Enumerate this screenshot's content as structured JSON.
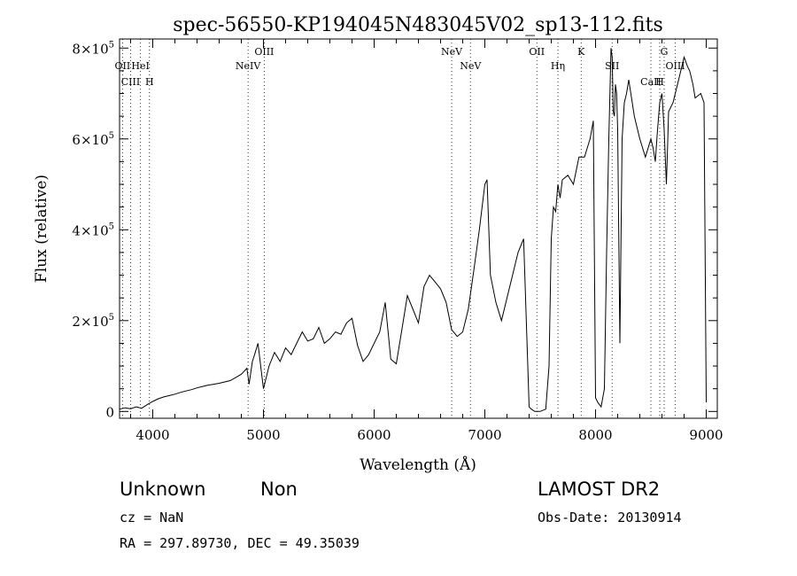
{
  "chart_data": {
    "type": "line",
    "title": "spec-56550-KP194045N483045V02_sp13-112.fits",
    "xlabel": "Wavelength (Å)",
    "ylabel": "Flux (relative)",
    "xlim": [
      3700,
      9100
    ],
    "ylim": [
      -15000,
      820000
    ],
    "x_ticks": [
      4000,
      5000,
      6000,
      7000,
      8000,
      9000
    ],
    "x_tick_labels": [
      "4000",
      "5000",
      "6000",
      "7000",
      "8000",
      "9000"
    ],
    "y_ticks": [
      0,
      200000,
      400000,
      600000,
      800000
    ],
    "y_tick_labels": [
      {
        "base": "0",
        "exp": ""
      },
      {
        "base": "2×10",
        "exp": "5"
      },
      {
        "base": "4×10",
        "exp": "5"
      },
      {
        "base": "6×10",
        "exp": "5"
      },
      {
        "base": "8×10",
        "exp": "5"
      }
    ],
    "grid": false,
    "lines": [
      {
        "label": "OII",
        "x": 3727,
        "row": 1
      },
      {
        "label": "CIII",
        "x": 3800,
        "row": 2
      },
      {
        "label": "HeI",
        "x": 3889,
        "row": 1
      },
      {
        "label": "H",
        "x": 3970,
        "row": 2
      },
      {
        "label": "NeIV",
        "x": 4861,
        "row": 1
      },
      {
        "label": "OIII",
        "x": 5007,
        "row": 0
      },
      {
        "label": "NeV",
        "x": 6700,
        "row": 0
      },
      {
        "label": "NeV",
        "x": 6870,
        "row": 1
      },
      {
        "label": "OII",
        "x": 7470,
        "row": 0
      },
      {
        "label": "Hη",
        "x": 7660,
        "row": 1
      },
      {
        "label": "K",
        "x": 7870,
        "row": 0
      },
      {
        "label": "SII",
        "x": 8150,
        "row": 1
      },
      {
        "label": "CaII",
        "x": 8500,
        "row": 2
      },
      {
        "label": "H",
        "x": 8580,
        "row": 2
      },
      {
        "label": "G",
        "x": 8620,
        "row": 0
      },
      {
        "label": "OIII",
        "x": 8720,
        "row": 1
      }
    ],
    "series": [
      {
        "x": [
          3700,
          3750,
          3800,
          3850,
          3900,
          3950,
          4000,
          4050,
          4100,
          4150,
          4200,
          4250,
          4300,
          4350,
          4400,
          4450,
          4500,
          4550,
          4600,
          4650,
          4700,
          4750,
          4800,
          4850,
          4870,
          4900,
          4920,
          4950,
          4980,
          5000,
          5050,
          5100,
          5150,
          5200,
          5250,
          5300,
          5350,
          5400,
          5450,
          5500,
          5550,
          5600,
          5650,
          5700,
          5750,
          5800,
          5850,
          5900,
          5950,
          6000,
          6050,
          6100,
          6150,
          6200,
          6250,
          6300,
          6350,
          6400,
          6450,
          6500,
          6550,
          6600,
          6650,
          6700,
          6750,
          6800,
          6850,
          6900,
          6950,
          7000,
          7020,
          7050,
          7100,
          7150,
          7200,
          7250,
          7300,
          7350,
          7400,
          7420,
          7450,
          7500,
          7550,
          7580,
          7600,
          7620,
          7640,
          7660,
          7680,
          7700,
          7750,
          7800,
          7850,
          7900,
          7950,
          7980,
          8000,
          8020,
          8050,
          8080,
          8100,
          8120,
          8140,
          8150,
          8160,
          8170,
          8180,
          8190,
          8200,
          8220,
          8240,
          8260,
          8280,
          8300,
          8350,
          8400,
          8450,
          8500,
          8520,
          8540,
          8560,
          8580,
          8600,
          8620,
          8640,
          8650,
          8660,
          8700,
          8750,
          8800,
          8830,
          8850,
          8880,
          8900,
          8950,
          8980,
          9000
        ],
        "y": [
          5000,
          8000,
          6000,
          10000,
          7000,
          15000,
          22000,
          28000,
          32000,
          35000,
          38000,
          42000,
          45000,
          48000,
          52000,
          55000,
          58000,
          60000,
          62000,
          65000,
          68000,
          75000,
          82000,
          95000,
          60000,
          110000,
          125000,
          150000,
          90000,
          50000,
          100000,
          130000,
          110000,
          140000,
          125000,
          150000,
          175000,
          155000,
          160000,
          185000,
          150000,
          160000,
          175000,
          170000,
          195000,
          205000,
          145000,
          110000,
          125000,
          150000,
          175000,
          240000,
          115000,
          105000,
          180000,
          255000,
          225000,
          195000,
          275000,
          300000,
          285000,
          270000,
          240000,
          180000,
          165000,
          175000,
          225000,
          310000,
          400000,
          500000,
          510000,
          300000,
          240000,
          200000,
          250000,
          300000,
          350000,
          380000,
          10000,
          5000,
          0,
          0,
          5000,
          100000,
          380000,
          450000,
          440000,
          500000,
          470000,
          510000,
          520000,
          500000,
          560000,
          560000,
          600000,
          640000,
          30000,
          20000,
          10000,
          50000,
          350000,
          600000,
          800000,
          780000,
          660000,
          650000,
          720000,
          700000,
          620000,
          150000,
          600000,
          680000,
          700000,
          730000,
          650000,
          600000,
          560000,
          600000,
          580000,
          550000,
          620000,
          680000,
          700000,
          620000,
          500000,
          580000,
          660000,
          680000,
          730000,
          780000,
          760000,
          750000,
          720000,
          690000,
          700000,
          680000,
          20000
        ]
      }
    ]
  },
  "info": {
    "class": "Unknown",
    "subclass": "Non",
    "survey": "LAMOST DR2",
    "cz": "cz = NaN",
    "obs_date": "Obs-Date: 20130914",
    "coords": "RA = 297.89730, DEC =  49.35039"
  }
}
